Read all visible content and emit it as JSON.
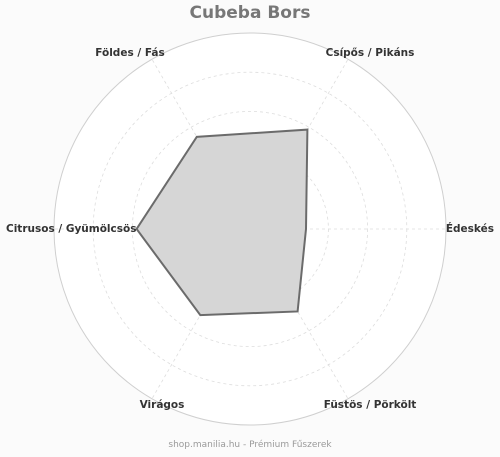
{
  "chart_data": {
    "type": "radar",
    "title": "Cubeba Bors",
    "axes": [
      "Édeskés",
      "Csípős / Pikáns",
      "Földes / Fás",
      "Citrusos / Gyümölcsös",
      "Virágos",
      "Füstös / Pörkölt"
    ],
    "values": [
      0,
      4.2,
      3.6,
      4.1,
      3.1,
      2.8
    ],
    "rlim": [
      -4,
      10
    ],
    "grid": true,
    "colors": {
      "fill": "#d6d6d6",
      "line": "#6b6b6b",
      "grid": "#dddddd",
      "background": "#ffffff"
    }
  },
  "footer": "shop.manilia.hu - Prémium Fűszerek"
}
